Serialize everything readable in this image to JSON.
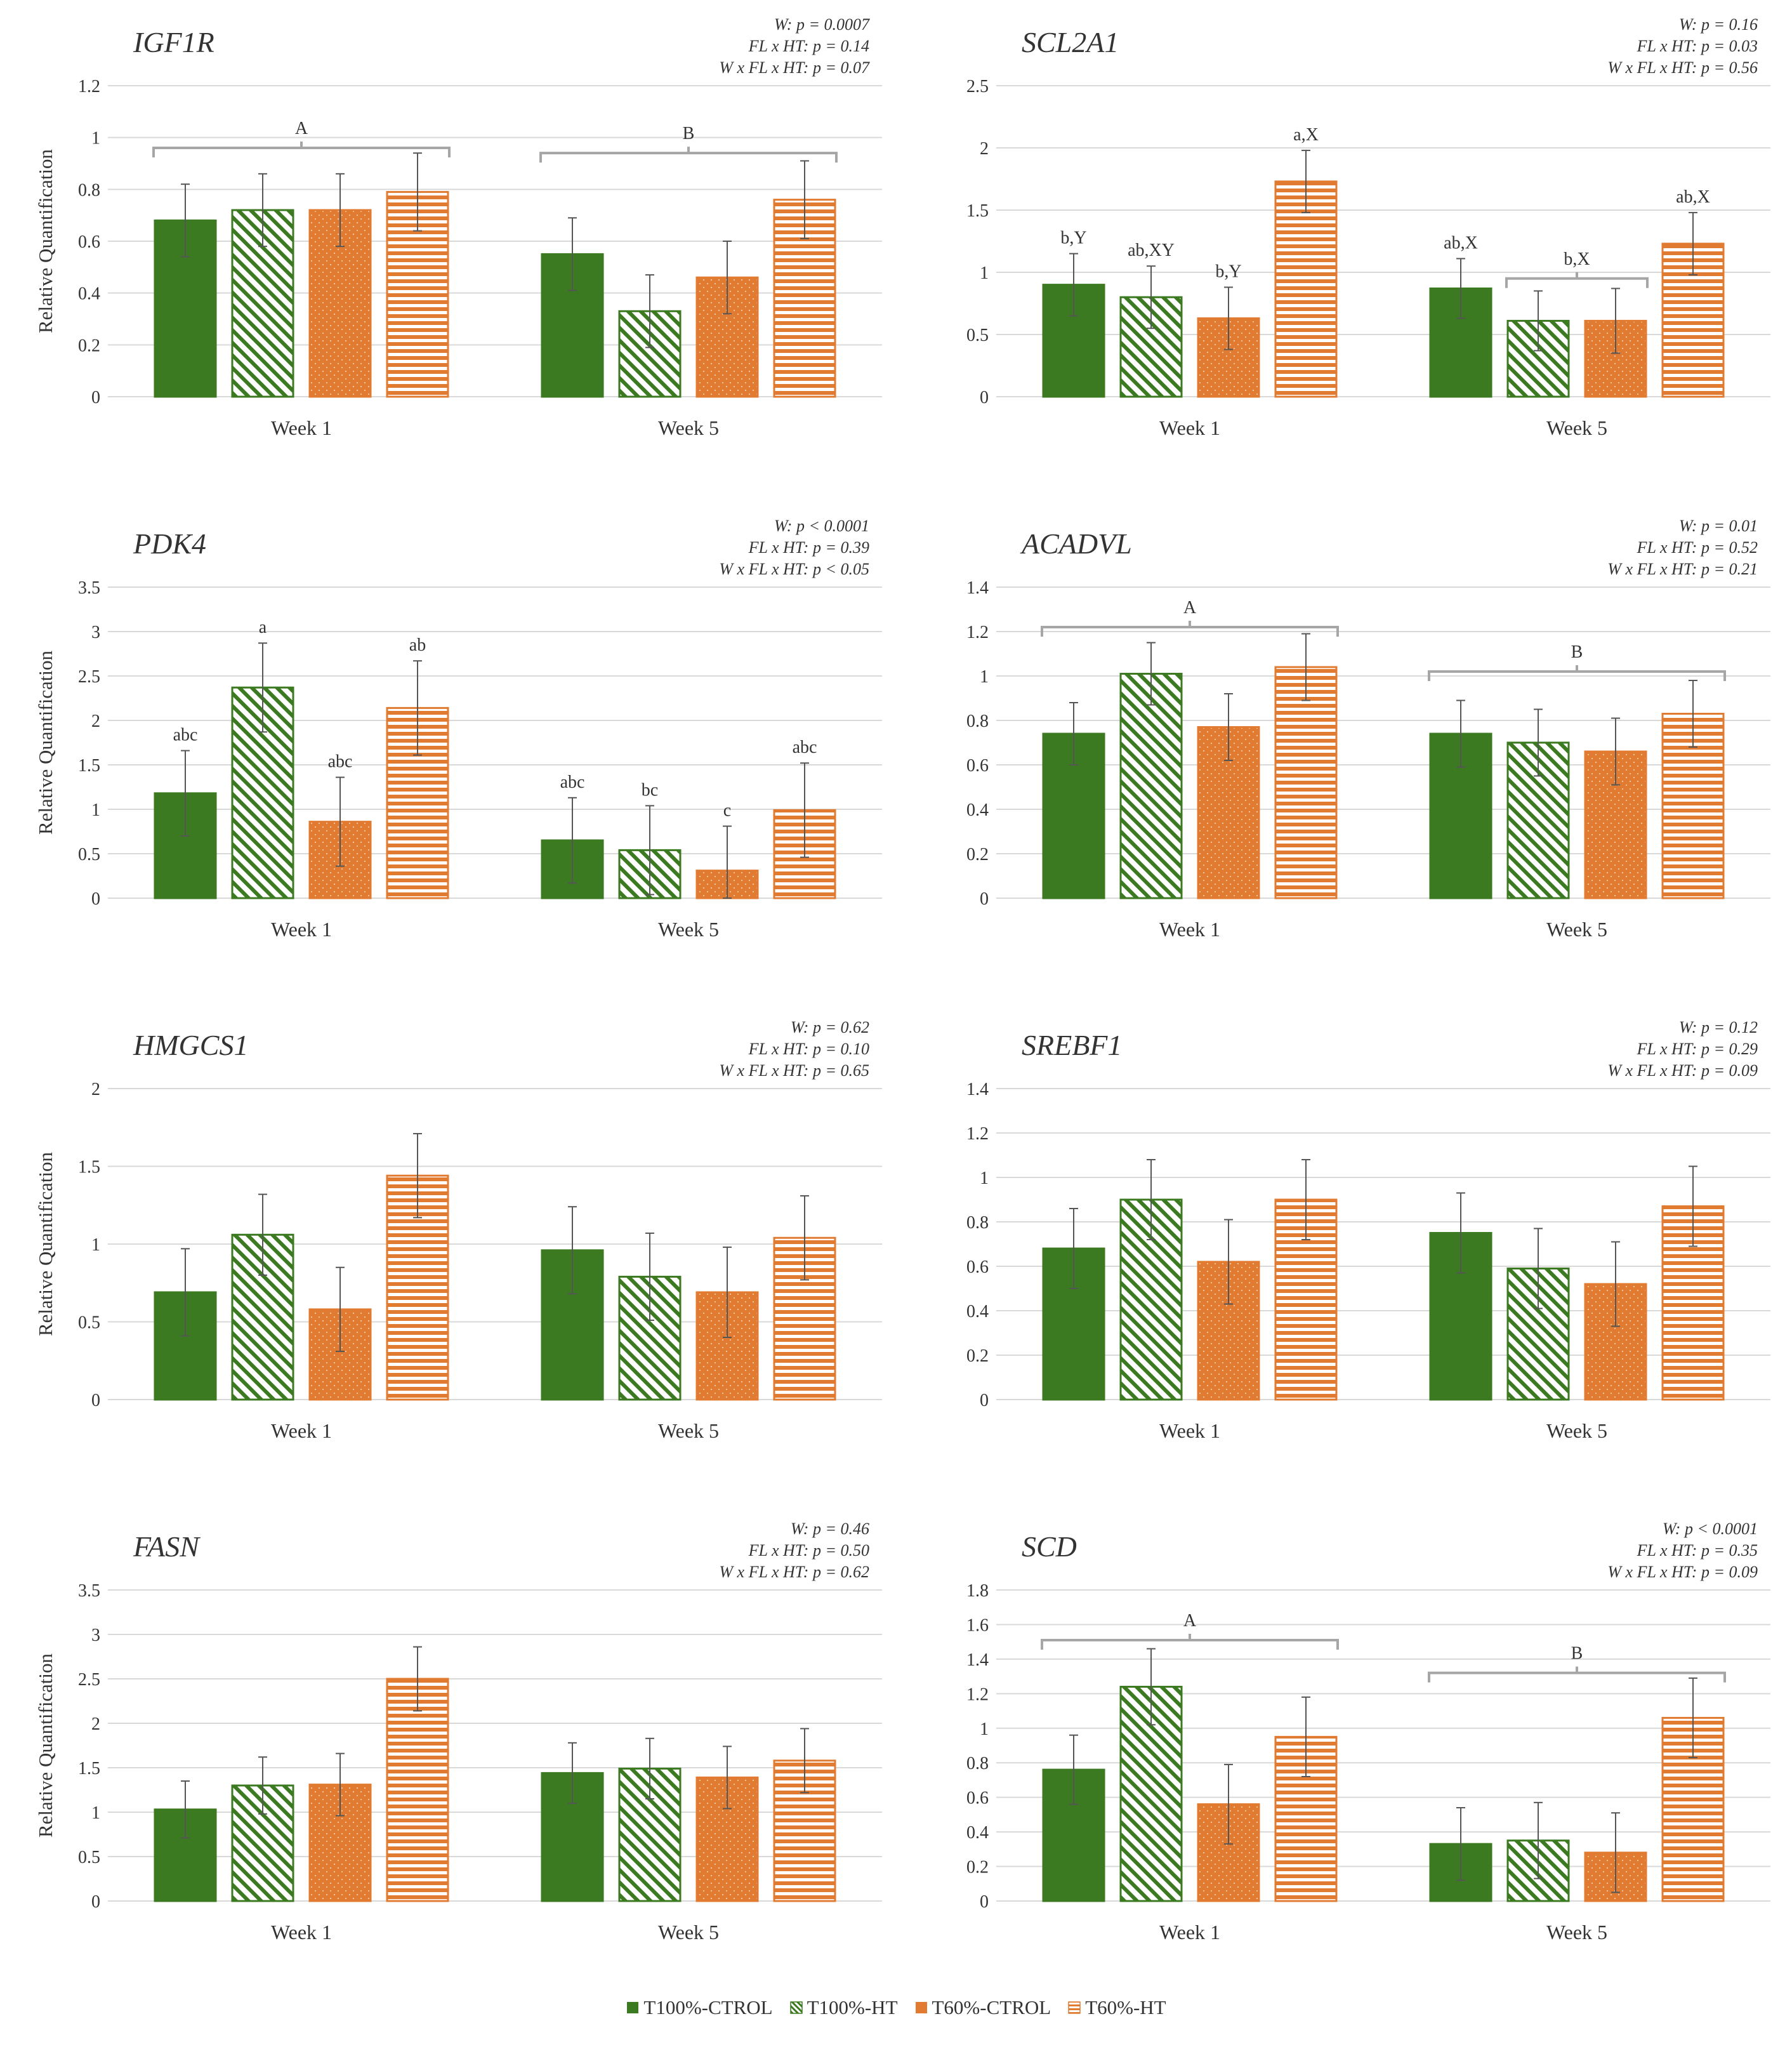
{
  "figure": {
    "legend": [
      {
        "label": "T100%-CTROL",
        "fill": "solid",
        "color": "#3c7a21"
      },
      {
        "label": "T100%-HT",
        "fill": "diag",
        "color": "#3c7a21"
      },
      {
        "label": "T60%-CTROL",
        "fill": "dots",
        "color": "#e07b31"
      },
      {
        "label": "T60%-HT",
        "fill": "hstripe",
        "color": "#e07b31"
      }
    ],
    "colors": {
      "green": "#3c7a21",
      "orange": "#e07b31",
      "grid": "#d9d9d9",
      "text": "#333333"
    }
  },
  "chart_data": [
    {
      "type": "bar",
      "gene": "IGF1R",
      "ylabel": "Relative Quantification",
      "yticks": [
        "0",
        "0.2",
        "0.4",
        "0.6",
        "0.8",
        "1",
        "1.2"
      ],
      "ylim": [
        0,
        1.2
      ],
      "categories": [
        "Week 1",
        "Week 5"
      ],
      "series": [
        {
          "name": "T100%-CTROL",
          "values": [
            0.68,
            0.55
          ],
          "errors": [
            0.14,
            0.14
          ]
        },
        {
          "name": "T100%-HT",
          "values": [
            0.72,
            0.33
          ],
          "errors": [
            0.14,
            0.14
          ]
        },
        {
          "name": "T60%-CTROL",
          "values": [
            0.72,
            0.46
          ],
          "errors": [
            0.14,
            0.14
          ]
        },
        {
          "name": "T60%-HT",
          "values": [
            0.79,
            0.76
          ],
          "errors": [
            0.15,
            0.15
          ]
        }
      ],
      "bar_labels": [
        [],
        [],
        [],
        []
      ],
      "stats": [
        "W: p = 0.0007",
        "FL x HT: p = 0.14",
        "W x FL x HT: p = 0.07"
      ],
      "brackets": [
        {
          "category": 0,
          "from": 0,
          "to": 3,
          "level": 0.96,
          "label": "A"
        },
        {
          "category": 1,
          "from": 0,
          "to": 3,
          "level": 0.94,
          "label": "B"
        }
      ]
    },
    {
      "type": "bar",
      "gene": "SCL2A1",
      "ylabel": "",
      "yticks": [
        "0",
        "0.5",
        "1",
        "1.5",
        "2",
        "2.5"
      ],
      "ylim": [
        0,
        2.5
      ],
      "categories": [
        "Week 1",
        "Week 5"
      ],
      "series": [
        {
          "name": "T100%-CTROL",
          "values": [
            0.9,
            0.87
          ],
          "errors": [
            0.25,
            0.24
          ]
        },
        {
          "name": "T100%-HT",
          "values": [
            0.8,
            0.61
          ],
          "errors": [
            0.25,
            0.24
          ]
        },
        {
          "name": "T60%-CTROL",
          "values": [
            0.63,
            0.61
          ],
          "errors": [
            0.25,
            0.26
          ]
        },
        {
          "name": "T60%-HT",
          "values": [
            1.73,
            1.23
          ],
          "errors": [
            0.25,
            0.25
          ]
        }
      ],
      "bar_labels": [
        [
          "b,Y",
          "ab,X"
        ],
        [
          "ab,XY",
          ""
        ],
        [
          "b,Y",
          ""
        ],
        [
          "a,X",
          "ab,X"
        ]
      ],
      "stats": [
        "W: p = 0.16",
        "FL x HT: p = 0.03",
        "W x FL x HT: p = 0.56"
      ],
      "brackets": [
        {
          "category": 1,
          "from": 1,
          "to": 2,
          "level": 0.95,
          "label": "b,X"
        }
      ]
    },
    {
      "type": "bar",
      "gene": "PDK4",
      "ylabel": "Relative Quantification",
      "yticks": [
        "0",
        "0.5",
        "1",
        "1.5",
        "2",
        "2.5",
        "3",
        "3.5"
      ],
      "ylim": [
        0,
        3.5
      ],
      "categories": [
        "Week 1",
        "Week 5"
      ],
      "series": [
        {
          "name": "T100%-CTROL",
          "values": [
            1.18,
            0.65
          ],
          "errors": [
            0.48,
            0.48
          ]
        },
        {
          "name": "T100%-HT",
          "values": [
            2.37,
            0.54
          ],
          "errors": [
            0.5,
            0.5
          ]
        },
        {
          "name": "T60%-CTROL",
          "values": [
            0.86,
            0.31
          ],
          "errors": [
            0.5,
            0.5
          ]
        },
        {
          "name": "T60%-HT",
          "values": [
            2.14,
            0.99
          ],
          "errors": [
            0.53,
            0.53
          ]
        }
      ],
      "bar_labels": [
        [
          "abc",
          "abc"
        ],
        [
          "a",
          "bc"
        ],
        [
          "abc",
          "c"
        ],
        [
          "ab",
          "abc"
        ]
      ],
      "stats": [
        "W: p < 0.0001",
        "FL x HT: p = 0.39",
        "W x FL x HT: p < 0.05"
      ],
      "brackets": []
    },
    {
      "type": "bar",
      "gene": "ACADVL",
      "ylabel": "",
      "yticks": [
        "0",
        "0.2",
        "0.4",
        "0.6",
        "0.8",
        "1",
        "1.2",
        "1.4"
      ],
      "ylim": [
        0,
        1.4
      ],
      "categories": [
        "Week 1",
        "Week 5"
      ],
      "series": [
        {
          "name": "T100%-CTROL",
          "values": [
            0.74,
            0.74
          ],
          "errors": [
            0.14,
            0.15
          ]
        },
        {
          "name": "T100%-HT",
          "values": [
            1.01,
            0.7
          ],
          "errors": [
            0.14,
            0.15
          ]
        },
        {
          "name": "T60%-CTROL",
          "values": [
            0.77,
            0.66
          ],
          "errors": [
            0.15,
            0.15
          ]
        },
        {
          "name": "T60%-HT",
          "values": [
            1.04,
            0.83
          ],
          "errors": [
            0.15,
            0.15
          ]
        }
      ],
      "bar_labels": [
        [],
        [],
        [],
        []
      ],
      "stats": [
        "W: p = 0.01",
        "FL x HT: p = 0.52",
        "W x FL x HT: p = 0.21"
      ],
      "brackets": [
        {
          "category": 0,
          "from": 0,
          "to": 3,
          "level": 1.22,
          "label": "A"
        },
        {
          "category": 1,
          "from": 0,
          "to": 3,
          "level": 1.02,
          "label": "B"
        }
      ]
    },
    {
      "type": "bar",
      "gene": "HMGCS1",
      "ylabel": "Relative Quantification",
      "yticks": [
        "0",
        "0.5",
        "1",
        "1.5",
        "2"
      ],
      "ylim": [
        0,
        2
      ],
      "categories": [
        "Week 1",
        "Week 5"
      ],
      "series": [
        {
          "name": "T100%-CTROL",
          "values": [
            0.69,
            0.96
          ],
          "errors": [
            0.28,
            0.28
          ]
        },
        {
          "name": "T100%-HT",
          "values": [
            1.06,
            0.79
          ],
          "errors": [
            0.26,
            0.28
          ]
        },
        {
          "name": "T60%-CTROL",
          "values": [
            0.58,
            0.69
          ],
          "errors": [
            0.27,
            0.29
          ]
        },
        {
          "name": "T60%-HT",
          "values": [
            1.44,
            1.04
          ],
          "errors": [
            0.27,
            0.27
          ]
        }
      ],
      "bar_labels": [
        [],
        [],
        [],
        []
      ],
      "stats": [
        "W: p = 0.62",
        "FL x HT: p = 0.10",
        "W x FL x HT: p = 0.65"
      ],
      "brackets": []
    },
    {
      "type": "bar",
      "gene": "SREBF1",
      "ylabel": "",
      "yticks": [
        "0",
        "0.2",
        "0.4",
        "0.6",
        "0.8",
        "1",
        "1.2",
        "1.4"
      ],
      "ylim": [
        0,
        1.4
      ],
      "categories": [
        "Week 1",
        "Week 5"
      ],
      "series": [
        {
          "name": "T100%-CTROL",
          "values": [
            0.68,
            0.75
          ],
          "errors": [
            0.18,
            0.18
          ]
        },
        {
          "name": "T100%-HT",
          "values": [
            0.9,
            0.59
          ],
          "errors": [
            0.18,
            0.18
          ]
        },
        {
          "name": "T60%-CTROL",
          "values": [
            0.62,
            0.52
          ],
          "errors": [
            0.19,
            0.19
          ]
        },
        {
          "name": "T60%-HT",
          "values": [
            0.9,
            0.87
          ],
          "errors": [
            0.18,
            0.18
          ]
        }
      ],
      "bar_labels": [
        [],
        [],
        [],
        []
      ],
      "stats": [
        "W: p = 0.12",
        "FL x HT: p = 0.29",
        "W x FL x HT: p = 0.09"
      ],
      "brackets": []
    },
    {
      "type": "bar",
      "gene": "FASN",
      "ylabel": "Relative Quantification",
      "yticks": [
        "0",
        "0.5",
        "1",
        "1.5",
        "2",
        "2.5",
        "3",
        "3.5"
      ],
      "ylim": [
        0,
        3.5
      ],
      "categories": [
        "Week 1",
        "Week 5"
      ],
      "series": [
        {
          "name": "T100%-CTROL",
          "values": [
            1.03,
            1.44
          ],
          "errors": [
            0.32,
            0.34
          ]
        },
        {
          "name": "T100%-HT",
          "values": [
            1.3,
            1.49
          ],
          "errors": [
            0.32,
            0.34
          ]
        },
        {
          "name": "T60%-CTROL",
          "values": [
            1.31,
            1.39
          ],
          "errors": [
            0.35,
            0.35
          ]
        },
        {
          "name": "T60%-HT",
          "values": [
            2.5,
            1.58
          ],
          "errors": [
            0.36,
            0.36
          ]
        }
      ],
      "bar_labels": [
        [],
        [],
        [],
        []
      ],
      "stats": [
        "W: p = 0.46",
        "FL x HT: p = 0.50",
        "W x FL x HT: p = 0.62"
      ],
      "brackets": []
    },
    {
      "type": "bar",
      "gene": "SCD",
      "ylabel": "",
      "yticks": [
        "0",
        "0.2",
        "0.4",
        "0.6",
        "0.8",
        "1",
        "1.2",
        "1.4",
        "1.6",
        "1.8"
      ],
      "ylim": [
        0,
        1.8
      ],
      "categories": [
        "Week 1",
        "Week 5"
      ],
      "series": [
        {
          "name": "T100%-CTROL",
          "values": [
            0.76,
            0.33
          ],
          "errors": [
            0.2,
            0.21
          ]
        },
        {
          "name": "T100%-HT",
          "values": [
            1.24,
            0.35
          ],
          "errors": [
            0.22,
            0.22
          ]
        },
        {
          "name": "T60%-CTROL",
          "values": [
            0.56,
            0.28
          ],
          "errors": [
            0.23,
            0.23
          ]
        },
        {
          "name": "T60%-HT",
          "values": [
            0.95,
            1.06
          ],
          "errors": [
            0.23,
            0.23
          ]
        }
      ],
      "bar_labels": [
        [],
        [],
        [],
        []
      ],
      "stats": [
        "W: p < 0.0001",
        "FL x HT: p = 0.35",
        "W x FL x HT: p = 0.09"
      ],
      "brackets": [
        {
          "category": 0,
          "from": 0,
          "to": 3,
          "level": 1.51,
          "label": "A"
        },
        {
          "category": 1,
          "from": 0,
          "to": 3,
          "level": 1.32,
          "label": "B"
        }
      ]
    }
  ]
}
